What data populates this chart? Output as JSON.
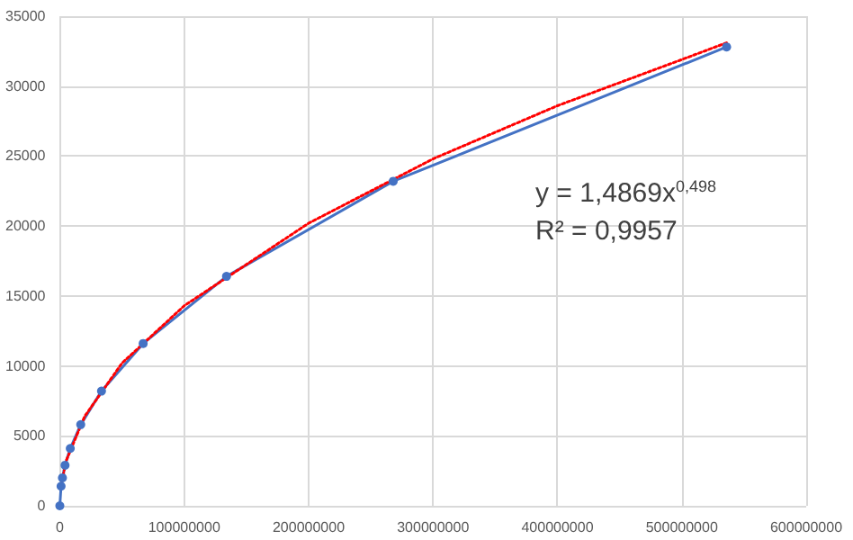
{
  "chart_data": {
    "type": "line",
    "series": [
      {
        "color": "#4472c4",
        "marker": "circle",
        "line_style": "solid",
        "x": [
          0,
          1000000,
          2100000,
          4200000,
          8400000,
          16800000,
          33500000,
          67000000,
          134000000,
          268000000,
          536000000
        ],
        "values": [
          0,
          1400,
          2000,
          2900,
          4100,
          5800,
          8200,
          11600,
          16400,
          23200,
          32800
        ]
      },
      {
        "color": "#ff0000",
        "marker": "none",
        "line_style": "dotted",
        "x": [
          1000000,
          5000000,
          20000000,
          50000000,
          100000000,
          200000000,
          300000000,
          400000000,
          500000000,
          536000000
        ],
        "values": [
          1400,
          3200,
          6400,
          10200,
          14300,
          20200,
          24800,
          28600,
          31900,
          33100
        ]
      }
    ],
    "xlim": [
      0,
      600000000
    ],
    "xticks": [
      0,
      100000000,
      200000000,
      300000000,
      400000000,
      500000000,
      600000000
    ],
    "ylim": [
      0,
      35000
    ],
    "yticks": [
      0,
      5000,
      10000,
      15000,
      20000,
      25000,
      30000,
      35000
    ],
    "grid": true,
    "annotations": [
      "y = 1,4869x$^{0,498}$",
      "R² = 0,9957"
    ]
  }
}
